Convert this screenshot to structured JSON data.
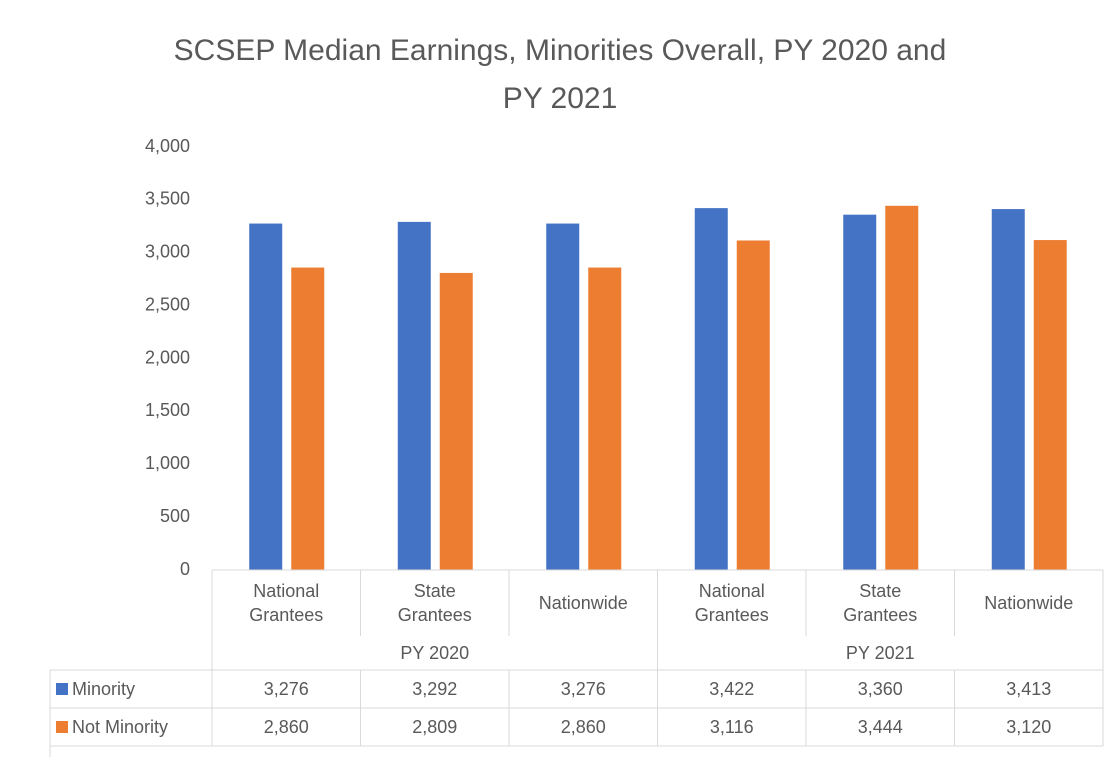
{
  "chart_data": {
    "type": "bar",
    "title": "SCSEP Median Earnings, Minorities Overall, PY 2020 and PY 2021",
    "groups": [
      {
        "name": "PY 2020",
        "categories": [
          "National Grantees",
          "State Grantees",
          "Nationwide"
        ]
      },
      {
        "name": "PY 2021",
        "categories": [
          "National Grantees",
          "State Grantees",
          "Nationwide"
        ]
      }
    ],
    "series": [
      {
        "name": "Minority",
        "color": "#4472c4",
        "values": [
          3276,
          3292,
          3276,
          3422,
          3360,
          3413
        ],
        "value_labels": [
          "3,276",
          "3,292",
          "3,276",
          "3,422",
          "3,360",
          "3,413"
        ]
      },
      {
        "name": "Not Minority",
        "color": "#ed7d31",
        "values": [
          2860,
          2809,
          2860,
          3116,
          3444,
          3120
        ],
        "value_labels": [
          "2,860",
          "2,809",
          "2,860",
          "3,116",
          "3,444",
          "3,120"
        ]
      }
    ],
    "ylim": [
      0,
      4000
    ],
    "yticks": [
      0,
      {
        "value": 500,
        "label": "500"
      },
      {
        "value": 1000,
        "label": "1,000"
      },
      {
        "value": 1500,
        "label": "1,500"
      },
      {
        "value": 2000,
        "label": "2,000"
      },
      {
        "value": 2500,
        "label": "2,500"
      },
      {
        "value": 3000,
        "label": "3,000"
      },
      {
        "value": 3500,
        "label": "3,500"
      },
      {
        "value": 4000,
        "label": "4,000"
      }
    ],
    "grid": false,
    "data_table": true
  }
}
